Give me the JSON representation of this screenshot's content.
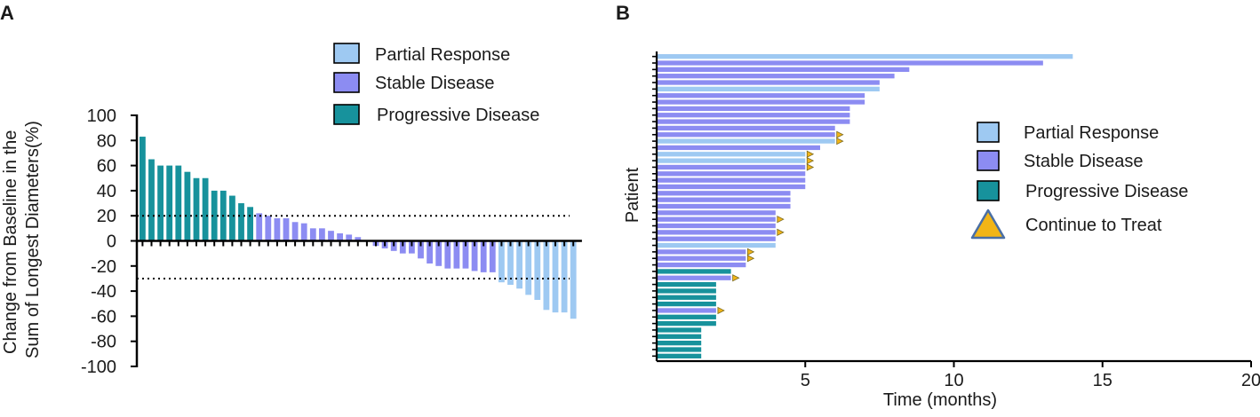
{
  "colors": {
    "partial_response": "#9ec9f2",
    "stable_disease": "#8c8cf2",
    "progressive_disease": "#17929c",
    "continue_marker": "#f2b517",
    "continue_marker_edge": "#4a6fa5",
    "axis": "#000000"
  },
  "chart_data": [
    {
      "panel_label": "A",
      "type": "bar",
      "title": "",
      "ylabel": "Change from Baseline in the Sum of Longest Diameters(%)",
      "ylabel_lines": [
        "Change from Baseline in the",
        "Sum of Longest Diameters(%)"
      ],
      "xlabel": "",
      "ylim": [
        -100,
        100
      ],
      "yticks": [
        "100",
        "80",
        "60",
        "40",
        "20",
        "0",
        "-20",
        "-40",
        "-60",
        "-80",
        "-100"
      ],
      "reference_lines": [
        20,
        -30
      ],
      "legend": [
        {
          "label": "Partial Response",
          "category": "PR"
        },
        {
          "label": "Stable Disease",
          "category": "SD"
        },
        {
          "label": "Progressive Disease",
          "category": "PD"
        }
      ],
      "bars": [
        {
          "value": 83,
          "category": "PD"
        },
        {
          "value": 65,
          "category": "PD"
        },
        {
          "value": 60,
          "category": "PD"
        },
        {
          "value": 60,
          "category": "PD"
        },
        {
          "value": 60,
          "category": "PD"
        },
        {
          "value": 55,
          "category": "PD"
        },
        {
          "value": 50,
          "category": "PD"
        },
        {
          "value": 50,
          "category": "PD"
        },
        {
          "value": 40,
          "category": "PD"
        },
        {
          "value": 40,
          "category": "PD"
        },
        {
          "value": 36,
          "category": "PD"
        },
        {
          "value": 30,
          "category": "PD"
        },
        {
          "value": 27,
          "category": "PD"
        },
        {
          "value": 22,
          "category": "SD"
        },
        {
          "value": 20,
          "category": "SD"
        },
        {
          "value": 18,
          "category": "SD"
        },
        {
          "value": 18,
          "category": "SD"
        },
        {
          "value": 15,
          "category": "SD"
        },
        {
          "value": 14,
          "category": "SD"
        },
        {
          "value": 10,
          "category": "SD"
        },
        {
          "value": 10,
          "category": "SD"
        },
        {
          "value": 8,
          "category": "SD"
        },
        {
          "value": 6,
          "category": "SD"
        },
        {
          "value": 5,
          "category": "SD"
        },
        {
          "value": 3,
          "category": "SD"
        },
        {
          "value": 0,
          "category": "SD"
        },
        {
          "value": -4,
          "category": "SD"
        },
        {
          "value": -6,
          "category": "SD"
        },
        {
          "value": -8,
          "category": "SD"
        },
        {
          "value": -10,
          "category": "SD"
        },
        {
          "value": -10,
          "category": "SD"
        },
        {
          "value": -14,
          "category": "SD"
        },
        {
          "value": -18,
          "category": "SD"
        },
        {
          "value": -20,
          "category": "SD"
        },
        {
          "value": -22,
          "category": "SD"
        },
        {
          "value": -22,
          "category": "SD"
        },
        {
          "value": -22,
          "category": "SD"
        },
        {
          "value": -24,
          "category": "SD"
        },
        {
          "value": -25,
          "category": "SD"
        },
        {
          "value": -25,
          "category": "SD"
        },
        {
          "value": -33,
          "category": "PR"
        },
        {
          "value": -35,
          "category": "PR"
        },
        {
          "value": -38,
          "category": "PR"
        },
        {
          "value": -43,
          "category": "PR"
        },
        {
          "value": -47,
          "category": "PR"
        },
        {
          "value": -55,
          "category": "PR"
        },
        {
          "value": -57,
          "category": "PR"
        },
        {
          "value": -57,
          "category": "PR"
        },
        {
          "value": -62,
          "category": "PR"
        }
      ]
    },
    {
      "panel_label": "B",
      "type": "bar",
      "orientation": "horizontal",
      "title": "",
      "xlabel": "Time (months)",
      "ylabel": "Patient",
      "xlim": [
        0,
        20
      ],
      "xticks": [
        "5",
        "10",
        "15",
        "20"
      ],
      "legend": [
        {
          "label": "Partial Response",
          "category": "PR"
        },
        {
          "label": "Stable Disease",
          "category": "SD"
        },
        {
          "label": "Progressive Disease",
          "category": "PD"
        },
        {
          "label": "Continue to Treat",
          "category": "marker"
        }
      ],
      "patients": [
        {
          "months": 14.0,
          "category": "PR",
          "continue": false
        },
        {
          "months": 13.0,
          "category": "SD",
          "continue": false
        },
        {
          "months": 8.5,
          "category": "SD",
          "continue": false
        },
        {
          "months": 8.0,
          "category": "SD",
          "continue": false
        },
        {
          "months": 7.5,
          "category": "SD",
          "continue": false
        },
        {
          "months": 7.5,
          "category": "PR",
          "continue": false
        },
        {
          "months": 7.0,
          "category": "SD",
          "continue": false
        },
        {
          "months": 7.0,
          "category": "SD",
          "continue": false
        },
        {
          "months": 6.5,
          "category": "SD",
          "continue": false
        },
        {
          "months": 6.5,
          "category": "SD",
          "continue": false
        },
        {
          "months": 6.5,
          "category": "SD",
          "continue": false
        },
        {
          "months": 6.0,
          "category": "SD",
          "continue": false
        },
        {
          "months": 6.0,
          "category": "SD",
          "continue": true
        },
        {
          "months": 6.0,
          "category": "PR",
          "continue": true
        },
        {
          "months": 5.5,
          "category": "SD",
          "continue": false
        },
        {
          "months": 5.0,
          "category": "PR",
          "continue": true
        },
        {
          "months": 5.0,
          "category": "PR",
          "continue": true
        },
        {
          "months": 5.0,
          "category": "SD",
          "continue": true
        },
        {
          "months": 5.0,
          "category": "SD",
          "continue": false
        },
        {
          "months": 5.0,
          "category": "SD",
          "continue": false
        },
        {
          "months": 5.0,
          "category": "SD",
          "continue": false
        },
        {
          "months": 4.5,
          "category": "SD",
          "continue": false
        },
        {
          "months": 4.5,
          "category": "SD",
          "continue": false
        },
        {
          "months": 4.5,
          "category": "SD",
          "continue": false
        },
        {
          "months": 4.0,
          "category": "SD",
          "continue": false
        },
        {
          "months": 4.0,
          "category": "SD",
          "continue": true
        },
        {
          "months": 4.0,
          "category": "SD",
          "continue": false
        },
        {
          "months": 4.0,
          "category": "SD",
          "continue": true
        },
        {
          "months": 4.0,
          "category": "SD",
          "continue": false
        },
        {
          "months": 4.0,
          "category": "PR",
          "continue": false
        },
        {
          "months": 3.0,
          "category": "SD",
          "continue": true
        },
        {
          "months": 3.0,
          "category": "SD",
          "continue": true
        },
        {
          "months": 3.0,
          "category": "SD",
          "continue": false
        },
        {
          "months": 2.5,
          "category": "PD",
          "continue": false
        },
        {
          "months": 2.5,
          "category": "SD",
          "continue": true
        },
        {
          "months": 2.0,
          "category": "PD",
          "continue": false
        },
        {
          "months": 2.0,
          "category": "PD",
          "continue": false
        },
        {
          "months": 2.0,
          "category": "PD",
          "continue": false
        },
        {
          "months": 2.0,
          "category": "PD",
          "continue": false
        },
        {
          "months": 2.0,
          "category": "SD",
          "continue": true
        },
        {
          "months": 2.0,
          "category": "PD",
          "continue": false
        },
        {
          "months": 2.0,
          "category": "PD",
          "continue": false
        },
        {
          "months": 1.5,
          "category": "PD",
          "continue": false
        },
        {
          "months": 1.5,
          "category": "PD",
          "continue": false
        },
        {
          "months": 1.5,
          "category": "PD",
          "continue": false
        },
        {
          "months": 1.5,
          "category": "PD",
          "continue": false
        },
        {
          "months": 1.5,
          "category": "PD",
          "continue": false
        }
      ]
    }
  ]
}
